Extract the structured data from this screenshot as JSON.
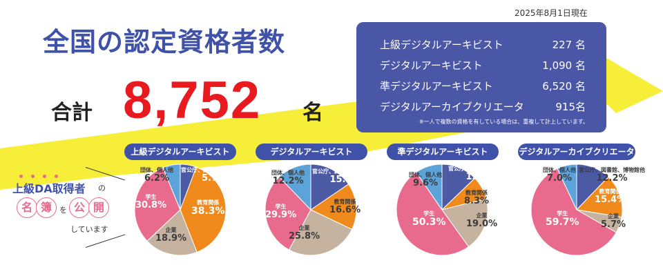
{
  "date": "2025年8月1日現在",
  "title": "全国の認定資格者数",
  "total": {
    "label": "合計",
    "value": "8,752",
    "unit": "名"
  },
  "panel": {
    "rows": [
      {
        "name": "上級デジタルアーキビスト",
        "count": "227 名"
      },
      {
        "name": "デジタルアーキビスト",
        "count": "1,090 名"
      },
      {
        "name": "準デジタルアーキビスト",
        "count": "6,520 名"
      },
      {
        "name": "デジタルアーカイブクリエータ",
        "count": "915名"
      }
    ],
    "note": "※一人で複数の資格を有している場合は、重複して計上しています。"
  },
  "side": {
    "heading_a": "上級DA取得者",
    "heading_b": "の",
    "c1": "名",
    "c2": "簿",
    "mid": "を",
    "c3": "公",
    "c4": "開",
    "tail": "しています"
  },
  "colors": {
    "navy": "#3f51a8",
    "panel": "#4a56a6",
    "red": "#e8191f",
    "yellow": "#f7ee3a",
    "group": "#5ba3d9",
    "public": "#4c5aa4",
    "education": "#f08a1c",
    "company": "#c5b39f",
    "student": "#e86a8c"
  },
  "chart_data": [
    {
      "type": "pie",
      "title": "上級デジタルアーキビスト",
      "slices": [
        {
          "name": "官公庁、図書館、博物館他",
          "value": 5.7,
          "label": "5.7%"
        },
        {
          "name": "教育関係",
          "value": 38.3,
          "label": "38.3%"
        },
        {
          "name": "企業",
          "value": 18.9,
          "label": "18.9%"
        },
        {
          "name": "学生",
          "value": 30.8,
          "label": "30.8%"
        },
        {
          "name": "団体、個人他",
          "value": 6.2,
          "label": "6.2%"
        }
      ]
    },
    {
      "type": "pie",
      "title": "デジタルアーキビスト",
      "slices": [
        {
          "name": "官公庁、図書館、博物館他",
          "value": 15.5,
          "label": "15.5%"
        },
        {
          "name": "教育関係",
          "value": 16.6,
          "label": "16.6%"
        },
        {
          "name": "企業",
          "value": 25.8,
          "label": "25.8%"
        },
        {
          "name": "学生",
          "value": 29.9,
          "label": "29.9%"
        },
        {
          "name": "団体、個人他",
          "value": 12.2,
          "label": "12.2%"
        }
      ]
    },
    {
      "type": "pie",
      "title": "準デジタルアーキビスト",
      "slices": [
        {
          "name": "官公庁、図書館、博物館他",
          "value": 12.8,
          "label": "12.8%"
        },
        {
          "name": "教育関係",
          "value": 8.3,
          "label": "8.3%"
        },
        {
          "name": "企業",
          "value": 19.0,
          "label": "19.0%"
        },
        {
          "name": "学生",
          "value": 50.3,
          "label": "50.3%"
        },
        {
          "name": "団体、個人他",
          "value": 9.6,
          "label": "9.6%"
        }
      ]
    },
    {
      "type": "pie",
      "title": "デジタルアーカイブクリエータ",
      "slices": [
        {
          "name": "官公庁、図書館、博物館他",
          "value": 12.2,
          "label": "12.2%"
        },
        {
          "name": "教育関係",
          "value": 15.4,
          "label": "15.4%"
        },
        {
          "name": "企業",
          "value": 5.7,
          "label": "5.7%"
        },
        {
          "name": "学生",
          "value": 59.7,
          "label": "59.7%"
        },
        {
          "name": "団体、個人他",
          "value": 7.0,
          "label": "7.0%"
        }
      ]
    }
  ]
}
